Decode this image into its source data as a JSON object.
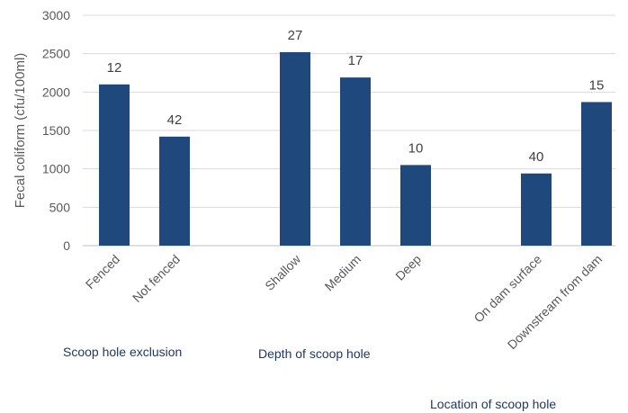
{
  "chart_data": {
    "type": "bar",
    "ylabel": "Fecal coliform (cfu/100ml)",
    "ylim": [
      0,
      3000
    ],
    "yticks": [
      0,
      500,
      1000,
      1500,
      2000,
      2500,
      3000
    ],
    "grid": true,
    "bar_color": "#1f497d",
    "categories": [
      "Fenced",
      "Not fenced",
      "Shallow",
      "Medium",
      "Deep",
      "On dam surface",
      "Downstream from dam"
    ],
    "values": [
      2100,
      1420,
      2520,
      2190,
      1050,
      940,
      1870
    ],
    "data_labels": [
      "12",
      "42",
      "27",
      "17",
      "10",
      "40",
      "15"
    ],
    "groups": [
      {
        "label": "Scoop hole exclusion",
        "categories": [
          "Fenced",
          "Not fenced"
        ]
      },
      {
        "label": "Depth of scoop hole",
        "categories": [
          "Shallow",
          "Medium",
          "Deep"
        ]
      },
      {
        "label": "Location of scoop hole",
        "categories": [
          "On dam surface",
          "Downstream from dam"
        ]
      }
    ]
  }
}
